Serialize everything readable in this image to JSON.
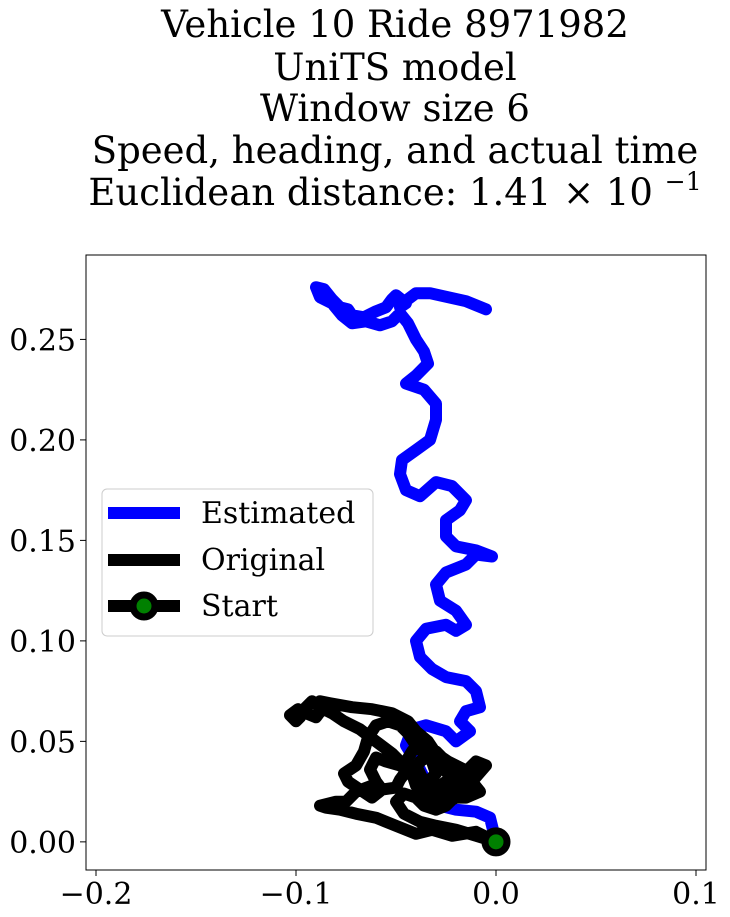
{
  "chart_data": {
    "type": "line",
    "title_lines": [
      "Vehicle 10 Ride 8971982",
      "UniTS model",
      "Window size 6",
      "Speed, heading, and actual time"
    ],
    "title_metric_prefix": "Euclidean distance: 1.41",
    "title_metric_times": "×",
    "title_metric_base": "10",
    "title_metric_exp": "−1",
    "xlabel": "",
    "ylabel": "",
    "xlim": [
      -0.205,
      0.105
    ],
    "ylim": [
      -0.014,
      0.292
    ],
    "x_ticks": [
      -0.2,
      -0.1,
      0.0,
      0.1
    ],
    "x_tick_labels": [
      "−0.2",
      "−0.1",
      "0.0",
      "0.1"
    ],
    "y_ticks": [
      0.0,
      0.05,
      0.1,
      0.15,
      0.2,
      0.25
    ],
    "y_tick_labels": [
      "0.00",
      "0.05",
      "0.10",
      "0.15",
      "0.20",
      "0.25"
    ],
    "grid": false,
    "legend_position": "center-left",
    "colors": {
      "estimated": "#0000ff",
      "original": "#000000",
      "start_fill": "#008000"
    },
    "series": [
      {
        "name": "Estimated",
        "points": [
          [
            0.0,
            0.0
          ],
          [
            -0.003,
            0.012
          ],
          [
            -0.01,
            0.015
          ],
          [
            -0.02,
            0.016
          ],
          [
            -0.028,
            0.018
          ],
          [
            -0.032,
            0.025
          ],
          [
            -0.035,
            0.03
          ],
          [
            -0.04,
            0.04
          ],
          [
            -0.045,
            0.048
          ],
          [
            -0.042,
            0.056
          ],
          [
            -0.035,
            0.058
          ],
          [
            -0.025,
            0.055
          ],
          [
            -0.02,
            0.05
          ],
          [
            -0.013,
            0.055
          ],
          [
            -0.018,
            0.06
          ],
          [
            -0.015,
            0.065
          ],
          [
            -0.008,
            0.067
          ],
          [
            -0.01,
            0.075
          ],
          [
            -0.015,
            0.08
          ],
          [
            -0.025,
            0.082
          ],
          [
            -0.032,
            0.086
          ],
          [
            -0.038,
            0.092
          ],
          [
            -0.04,
            0.1
          ],
          [
            -0.035,
            0.106
          ],
          [
            -0.025,
            0.108
          ],
          [
            -0.02,
            0.105
          ],
          [
            -0.015,
            0.108
          ],
          [
            -0.02,
            0.115
          ],
          [
            -0.028,
            0.12
          ],
          [
            -0.03,
            0.128
          ],
          [
            -0.025,
            0.134
          ],
          [
            -0.015,
            0.138
          ],
          [
            -0.01,
            0.143
          ],
          [
            -0.002,
            0.142
          ],
          [
            -0.01,
            0.145
          ],
          [
            -0.02,
            0.147
          ],
          [
            -0.025,
            0.152
          ],
          [
            -0.025,
            0.16
          ],
          [
            -0.018,
            0.165
          ],
          [
            -0.015,
            0.17
          ],
          [
            -0.022,
            0.177
          ],
          [
            -0.03,
            0.179
          ],
          [
            -0.038,
            0.172
          ],
          [
            -0.045,
            0.175
          ],
          [
            -0.048,
            0.183
          ],
          [
            -0.047,
            0.19
          ],
          [
            -0.04,
            0.195
          ],
          [
            -0.033,
            0.2
          ],
          [
            -0.03,
            0.21
          ],
          [
            -0.03,
            0.218
          ],
          [
            -0.036,
            0.225
          ],
          [
            -0.045,
            0.228
          ],
          [
            -0.04,
            0.232
          ],
          [
            -0.034,
            0.238
          ],
          [
            -0.036,
            0.244
          ],
          [
            -0.04,
            0.25
          ],
          [
            -0.044,
            0.258
          ],
          [
            -0.048,
            0.263
          ],
          [
            -0.052,
            0.259
          ],
          [
            -0.058,
            0.257
          ],
          [
            -0.065,
            0.259
          ],
          [
            -0.072,
            0.258
          ],
          [
            -0.077,
            0.262
          ],
          [
            -0.082,
            0.268
          ],
          [
            -0.088,
            0.271
          ],
          [
            -0.09,
            0.276
          ],
          [
            -0.086,
            0.275
          ],
          [
            -0.082,
            0.27
          ],
          [
            -0.078,
            0.266
          ],
          [
            -0.074,
            0.265
          ],
          [
            -0.072,
            0.262
          ],
          [
            -0.066,
            0.261
          ],
          [
            -0.06,
            0.264
          ],
          [
            -0.055,
            0.266
          ],
          [
            -0.052,
            0.27
          ],
          [
            -0.05,
            0.272
          ],
          [
            -0.045,
            0.268
          ],
          [
            -0.048,
            0.266
          ],
          [
            -0.044,
            0.27
          ],
          [
            -0.04,
            0.273
          ],
          [
            -0.033,
            0.273
          ],
          [
            -0.024,
            0.271
          ],
          [
            -0.015,
            0.269
          ],
          [
            -0.005,
            0.265
          ]
        ]
      },
      {
        "name": "Original",
        "points": [
          [
            0.0,
            0.0
          ],
          [
            -0.01,
            0.005
          ],
          [
            -0.022,
            0.003
          ],
          [
            -0.032,
            0.006
          ],
          [
            -0.04,
            0.004
          ],
          [
            -0.05,
            0.008
          ],
          [
            -0.06,
            0.012
          ],
          [
            -0.07,
            0.014
          ],
          [
            -0.078,
            0.016
          ],
          [
            -0.085,
            0.017
          ],
          [
            -0.088,
            0.018
          ],
          [
            -0.08,
            0.02
          ],
          [
            -0.075,
            0.02
          ],
          [
            -0.07,
            0.025
          ],
          [
            -0.062,
            0.028
          ],
          [
            -0.057,
            0.026
          ],
          [
            -0.05,
            0.027
          ],
          [
            -0.048,
            0.031
          ],
          [
            -0.045,
            0.035
          ],
          [
            -0.04,
            0.038
          ],
          [
            -0.035,
            0.028
          ],
          [
            -0.03,
            0.02
          ],
          [
            -0.025,
            0.024
          ],
          [
            -0.02,
            0.03
          ],
          [
            -0.015,
            0.035
          ],
          [
            -0.01,
            0.04
          ],
          [
            -0.005,
            0.038
          ],
          [
            -0.012,
            0.03
          ],
          [
            -0.018,
            0.025
          ],
          [
            -0.025,
            0.018
          ],
          [
            -0.03,
            0.016
          ],
          [
            -0.035,
            0.02
          ],
          [
            -0.038,
            0.027
          ],
          [
            -0.042,
            0.033
          ],
          [
            -0.038,
            0.04
          ],
          [
            -0.03,
            0.045
          ],
          [
            -0.025,
            0.04
          ],
          [
            -0.018,
            0.035
          ],
          [
            -0.012,
            0.03
          ],
          [
            -0.008,
            0.025
          ],
          [
            -0.015,
            0.022
          ],
          [
            -0.025,
            0.022
          ],
          [
            -0.032,
            0.025
          ],
          [
            -0.038,
            0.03
          ],
          [
            -0.04,
            0.035
          ],
          [
            -0.045,
            0.04
          ],
          [
            -0.042,
            0.045
          ],
          [
            -0.038,
            0.05
          ],
          [
            -0.032,
            0.045
          ],
          [
            -0.028,
            0.038
          ],
          [
            -0.022,
            0.032
          ],
          [
            -0.028,
            0.028
          ],
          [
            -0.035,
            0.024
          ],
          [
            -0.04,
            0.028
          ],
          [
            -0.042,
            0.034
          ],
          [
            -0.048,
            0.038
          ],
          [
            -0.055,
            0.04
          ],
          [
            -0.06,
            0.042
          ],
          [
            -0.063,
            0.036
          ],
          [
            -0.06,
            0.03
          ],
          [
            -0.057,
            0.026
          ],
          [
            -0.062,
            0.022
          ],
          [
            -0.068,
            0.026
          ],
          [
            -0.074,
            0.03
          ],
          [
            -0.076,
            0.034
          ],
          [
            -0.07,
            0.038
          ],
          [
            -0.066,
            0.045
          ],
          [
            -0.064,
            0.052
          ],
          [
            -0.06,
            0.058
          ],
          [
            -0.054,
            0.06
          ],
          [
            -0.048,
            0.058
          ],
          [
            -0.044,
            0.054
          ],
          [
            -0.04,
            0.048
          ],
          [
            -0.036,
            0.044
          ],
          [
            -0.032,
            0.04
          ],
          [
            -0.03,
            0.034
          ],
          [
            -0.034,
            0.03
          ],
          [
            -0.04,
            0.032
          ],
          [
            -0.046,
            0.038
          ],
          [
            -0.052,
            0.044
          ],
          [
            -0.06,
            0.05
          ],
          [
            -0.068,
            0.056
          ],
          [
            -0.076,
            0.06
          ],
          [
            -0.082,
            0.064
          ],
          [
            -0.088,
            0.067
          ],
          [
            -0.092,
            0.07
          ],
          [
            -0.096,
            0.066
          ],
          [
            -0.098,
            0.062
          ],
          [
            -0.1,
            0.06
          ],
          [
            -0.103,
            0.063
          ],
          [
            -0.099,
            0.066
          ],
          [
            -0.095,
            0.064
          ],
          [
            -0.09,
            0.062
          ],
          [
            -0.087,
            0.066
          ],
          [
            -0.088,
            0.07
          ],
          [
            -0.083,
            0.069
          ],
          [
            -0.072,
            0.067
          ],
          [
            -0.062,
            0.066
          ],
          [
            -0.052,
            0.064
          ],
          [
            -0.044,
            0.06
          ],
          [
            -0.04,
            0.055
          ],
          [
            -0.034,
            0.05
          ],
          [
            -0.03,
            0.044
          ],
          [
            -0.024,
            0.04
          ],
          [
            -0.016,
            0.036
          ],
          [
            -0.012,
            0.03
          ],
          [
            -0.016,
            0.024
          ],
          [
            -0.024,
            0.02
          ],
          [
            -0.03,
            0.016
          ],
          [
            -0.036,
            0.018
          ],
          [
            -0.04,
            0.022
          ],
          [
            -0.046,
            0.024
          ],
          [
            -0.05,
            0.02
          ],
          [
            -0.046,
            0.014
          ],
          [
            -0.038,
            0.01
          ],
          [
            -0.03,
            0.008
          ],
          [
            -0.02,
            0.006
          ],
          [
            -0.01,
            0.003
          ],
          [
            0.0,
            0.0
          ]
        ]
      }
    ],
    "start_point": {
      "label": "Start",
      "x": 0.0,
      "y": 0.0
    },
    "legend": [
      "Estimated",
      "Original",
      "Start"
    ]
  }
}
